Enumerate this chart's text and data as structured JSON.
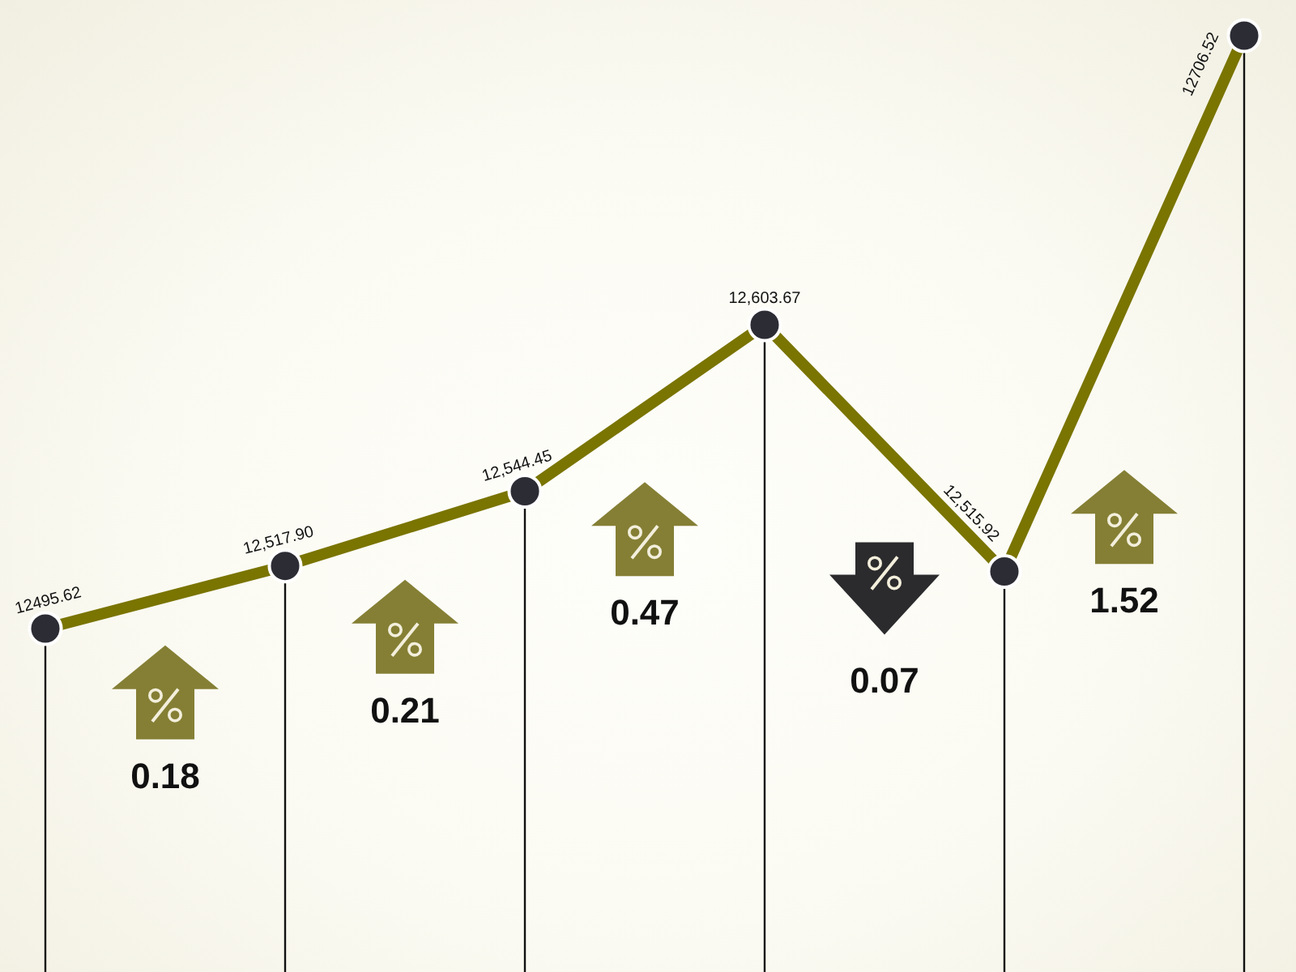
{
  "chart_data": {
    "type": "line",
    "categories": [
      null,
      null,
      null,
      null,
      null,
      null
    ],
    "series": [
      {
        "color": "#7a7400",
        "values": [
          12495.62,
          12517.9,
          12544.45,
          12603.67,
          12515.92,
          12706.52
        ],
        "value_labels": [
          "12495.62",
          "12,517.90",
          "12,544.45",
          "12,603.67",
          "12,515.92",
          "12706.52"
        ]
      }
    ],
    "marker": "circle",
    "grid": "x",
    "annotations": [
      "0.18",
      "0.21",
      "0.47",
      "0.07",
      "1.52"
    ]
  }
}
